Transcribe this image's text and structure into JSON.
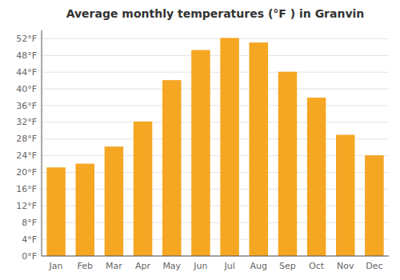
{
  "chart_data": {
    "type": "bar",
    "title": "Average monthly temperatures (°F ) in Granvin",
    "categories": [
      "Jan",
      "Feb",
      "Mar",
      "Apr",
      "May",
      "Jun",
      "Jul",
      "Aug",
      "Sep",
      "Oct",
      "Nov",
      "Dec"
    ],
    "values": [
      21.2,
      22.1,
      26.2,
      32.2,
      42.1,
      49.3,
      52.2,
      51.1,
      44.1,
      37.9,
      29.0,
      24.1
    ],
    "color": "#F5A623",
    "ylim": [
      0,
      54
    ],
    "yticks": [
      {
        "value": 0,
        "label": "0°F"
      },
      {
        "value": 4,
        "label": "4°F"
      },
      {
        "value": 8,
        "label": "8°F"
      },
      {
        "value": 12,
        "label": "12°F"
      },
      {
        "value": 16,
        "label": "16°F"
      },
      {
        "value": 20,
        "label": "20°F"
      },
      {
        "value": 24,
        "label": "24°F"
      },
      {
        "value": 28,
        "label": "28°F"
      },
      {
        "value": 32,
        "label": "32°F"
      },
      {
        "value": 36,
        "label": "36°F"
      },
      {
        "value": 40,
        "label": "40°F"
      },
      {
        "value": 44,
        "label": "44°F"
      },
      {
        "value": 48,
        "label": "48°F"
      },
      {
        "value": 52,
        "label": "52°F"
      }
    ],
    "grid": true
  }
}
